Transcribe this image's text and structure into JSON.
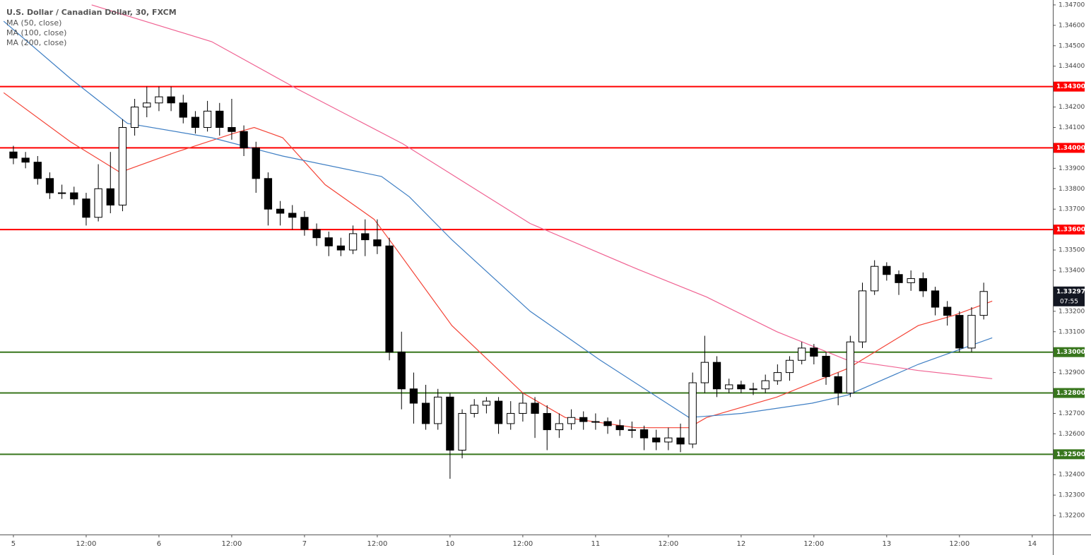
{
  "chart_data": {
    "type": "candlestick",
    "title": "U.S. Dollar / Canadian Dollar, 30, FXCM",
    "up_color": "#ffffff",
    "down_color": "#000000",
    "x": [
      0,
      2,
      4,
      6,
      8,
      10,
      12,
      14,
      16,
      18,
      20,
      22,
      24,
      26,
      28,
      30,
      32,
      34,
      36,
      38,
      40,
      42,
      44,
      46,
      48,
      50,
      52,
      54,
      56,
      58,
      60,
      62,
      64,
      66,
      68,
      70,
      72,
      74,
      76,
      78,
      80,
      82,
      84,
      86,
      88,
      90,
      92,
      94,
      96,
      98,
      100,
      102,
      104,
      106,
      108,
      110,
      112,
      114,
      116,
      118,
      120,
      122,
      124,
      126,
      128,
      130,
      132,
      134,
      136,
      138,
      140,
      142,
      144,
      146,
      148,
      150,
      152,
      154,
      156,
      158,
      160
    ],
    "open": [
      1.3398,
      1.3395,
      1.3393,
      1.3385,
      1.3378,
      1.3378,
      1.3375,
      1.3366,
      1.338,
      1.3372,
      1.341,
      1.342,
      1.3422,
      1.3425,
      1.3422,
      1.3415,
      1.341,
      1.3418,
      1.341,
      1.3408,
      1.34,
      1.3385,
      1.337,
      1.3368,
      1.3366,
      1.336,
      1.3356,
      1.3352,
      1.335,
      1.3358,
      1.3355,
      1.3352,
      1.33,
      1.3282,
      1.3275,
      1.3265,
      1.3278,
      1.3252,
      1.327,
      1.3274,
      1.3276,
      1.3265,
      1.327,
      1.3275,
      1.327,
      1.3262,
      1.3265,
      1.3268,
      1.3266,
      1.3266,
      1.3264,
      1.3262,
      1.3262,
      1.3258,
      1.3256,
      1.3258,
      1.3255,
      1.3285,
      1.3295,
      1.3282,
      1.3284,
      1.3282,
      1.3282,
      1.3286,
      1.329,
      1.3296,
      1.3302,
      1.3298,
      1.3288,
      1.328,
      1.3305,
      1.333,
      1.3342,
      1.3338,
      1.3334,
      1.3336,
      1.333,
      1.3322,
      1.3318,
      1.3302,
      1.3318
    ],
    "high": [
      1.3401,
      1.3398,
      1.3396,
      1.3388,
      1.3382,
      1.3381,
      1.3378,
      1.3392,
      1.3398,
      1.3414,
      1.3424,
      1.343,
      1.343,
      1.343,
      1.3426,
      1.3418,
      1.3423,
      1.3422,
      1.3424,
      1.3411,
      1.3403,
      1.3388,
      1.3374,
      1.3372,
      1.3369,
      1.3363,
      1.3359,
      1.3356,
      1.3362,
      1.3365,
      1.3365,
      1.3356,
      1.331,
      1.329,
      1.3284,
      1.3282,
      1.328,
      1.3272,
      1.3277,
      1.3278,
      1.3278,
      1.3276,
      1.328,
      1.3278,
      1.3274,
      1.327,
      1.3272,
      1.3271,
      1.327,
      1.3268,
      1.3267,
      1.3266,
      1.3264,
      1.3262,
      1.3263,
      1.3265,
      1.329,
      1.3308,
      1.3298,
      1.3287,
      1.3286,
      1.3285,
      1.3289,
      1.3294,
      1.3298,
      1.3305,
      1.3304,
      1.33,
      1.329,
      1.3308,
      1.3334,
      1.3345,
      1.3344,
      1.334,
      1.334,
      1.3339,
      1.3332,
      1.3325,
      1.332,
      1.3322,
      1.3334
    ],
    "low": [
      1.3392,
      1.339,
      1.3382,
      1.3375,
      1.3375,
      1.3372,
      1.3362,
      1.3364,
      1.3368,
      1.3369,
      1.3406,
      1.3415,
      1.3418,
      1.3418,
      1.3412,
      1.3407,
      1.3408,
      1.3406,
      1.3404,
      1.3396,
      1.3378,
      1.3362,
      1.3362,
      1.336,
      1.3357,
      1.3352,
      1.3347,
      1.3347,
      1.3348,
      1.3347,
      1.3348,
      1.3296,
      1.3272,
      1.3265,
      1.3262,
      1.3262,
      1.3238,
      1.3248,
      1.3268,
      1.327,
      1.326,
      1.3262,
      1.3266,
      1.3258,
      1.3252,
      1.3258,
      1.3262,
      1.3262,
      1.3262,
      1.326,
      1.3259,
      1.3258,
      1.3252,
      1.3252,
      1.3252,
      1.3251,
      1.3253,
      1.328,
      1.3278,
      1.328,
      1.328,
      1.3279,
      1.328,
      1.3284,
      1.3286,
      1.3294,
      1.3294,
      1.3284,
      1.3274,
      1.3278,
      1.3302,
      1.3328,
      1.3335,
      1.3328,
      1.333,
      1.3327,
      1.3318,
      1.3313,
      1.33,
      1.33,
      1.3316
    ],
    "close": [
      1.3395,
      1.3393,
      1.3385,
      1.3378,
      1.3378,
      1.3375,
      1.3366,
      1.338,
      1.3372,
      1.341,
      1.342,
      1.3422,
      1.3425,
      1.3422,
      1.3415,
      1.341,
      1.3418,
      1.341,
      1.3408,
      1.34,
      1.3385,
      1.337,
      1.3368,
      1.3366,
      1.336,
      1.3356,
      1.3352,
      1.335,
      1.3358,
      1.3355,
      1.3352,
      1.33,
      1.3282,
      1.3275,
      1.3265,
      1.3278,
      1.3252,
      1.327,
      1.3274,
      1.3276,
      1.3265,
      1.327,
      1.3275,
      1.327,
      1.3262,
      1.3265,
      1.3268,
      1.3266,
      1.3266,
      1.3264,
      1.3262,
      1.3262,
      1.3258,
      1.3256,
      1.3258,
      1.3255,
      1.3285,
      1.3295,
      1.3282,
      1.3284,
      1.3282,
      1.3282,
      1.3286,
      1.329,
      1.3296,
      1.3302,
      1.3298,
      1.3288,
      1.328,
      1.3305,
      1.333,
      1.3342,
      1.3338,
      1.3334,
      1.3336,
      1.333,
      1.3322,
      1.3318,
      1.3302,
      1.3318,
      1.33297
    ],
    "series": [
      {
        "name": "MA (50, close)",
        "color": "#f44336",
        "x": [
          -1.6,
          9.4,
          17.6,
          26.9,
          36.2,
          39.7,
          44.4,
          51.4,
          59.5,
          63.0,
          72.3,
          84.0,
          91.0,
          102.6,
          111.4,
          114.3,
          125.9,
          137.6,
          149.2,
          155.1,
          161.4
        ],
        "values": [
          1.3427,
          1.3403,
          1.3388,
          1.3398,
          1.3407,
          1.341,
          1.3405,
          1.3382,
          1.3365,
          1.3351,
          1.3313,
          1.328,
          1.3268,
          1.3263,
          1.3263,
          1.3268,
          1.3278,
          1.3292,
          1.3313,
          1.3318,
          1.3325
        ]
      },
      {
        "name": "MA (100, close)",
        "color": "#3f7fc4",
        "x": [
          -1.6,
          9.4,
          18.8,
          32.7,
          44.4,
          60.7,
          65.3,
          72.3,
          85.2,
          96.8,
          111.4,
          120.1,
          131.7,
          137.6,
          149.2,
          161.4
        ],
        "values": [
          1.3462,
          1.3434,
          1.3412,
          1.3405,
          1.3396,
          1.3386,
          1.3376,
          1.3355,
          1.332,
          1.3296,
          1.3268,
          1.327,
          1.3275,
          1.3279,
          1.3294,
          1.3307
        ]
      },
      {
        "name": "MA (200, close)",
        "color": "#f06292",
        "x": [
          12.9,
          32.7,
          46.7,
          64.2,
          85.2,
          102.6,
          114.3,
          125.9,
          137.6,
          149.2,
          161.4
        ],
        "values": [
          1.347,
          1.3452,
          1.3429,
          1.3402,
          1.3363,
          1.3341,
          1.3327,
          1.331,
          1.3296,
          1.3291,
          1.3287
        ]
      }
    ],
    "levels": [
      {
        "value": 1.343,
        "label": "1.34300",
        "color": "#ff0000"
      },
      {
        "value": 1.34,
        "label": "1.34000",
        "color": "#ff0000"
      },
      {
        "value": 1.336,
        "label": "1.33600",
        "color": "#ff0000"
      },
      {
        "value": 1.33,
        "label": "1.33000",
        "color": "#38761d"
      },
      {
        "value": 1.328,
        "label": "1.32800",
        "color": "#38761d"
      },
      {
        "value": 1.325,
        "label": "1.32500",
        "color": "#38761d"
      }
    ],
    "last_price": {
      "value": 1.33297,
      "label": "1.33297"
    },
    "countdown": "07:55",
    "xlim": [
      -2.21,
      171.4
    ],
    "ylim": [
      1.32107,
      1.34724
    ],
    "xticks": [
      {
        "value": 0,
        "label": "5"
      },
      {
        "value": 12,
        "label": "12:00"
      },
      {
        "value": 24,
        "label": "6"
      },
      {
        "value": 36,
        "label": "12:00"
      },
      {
        "value": 48,
        "label": "7"
      },
      {
        "value": 60,
        "label": "12:00"
      },
      {
        "value": 72,
        "label": "10"
      },
      {
        "value": 84,
        "label": "12:00"
      },
      {
        "value": 96,
        "label": "11"
      },
      {
        "value": 108,
        "label": "12:00"
      },
      {
        "value": 120,
        "label": "12"
      },
      {
        "value": 132,
        "label": "12:00"
      },
      {
        "value": 144,
        "label": "13"
      },
      {
        "value": 156,
        "label": "12:00"
      },
      {
        "value": 168,
        "label": "14"
      }
    ],
    "yticks": [
      {
        "value": 1.347,
        "label": "1.34700"
      },
      {
        "value": 1.346,
        "label": "1.34600"
      },
      {
        "value": 1.345,
        "label": "1.34500"
      },
      {
        "value": 1.344,
        "label": "1.34400"
      },
      {
        "value": 1.342,
        "label": "1.34200"
      },
      {
        "value": 1.341,
        "label": "1.34100"
      },
      {
        "value": 1.339,
        "label": "1.33900"
      },
      {
        "value": 1.338,
        "label": "1.33800"
      },
      {
        "value": 1.337,
        "label": "1.33700"
      },
      {
        "value": 1.335,
        "label": "1.33500"
      },
      {
        "value": 1.334,
        "label": "1.33400"
      },
      {
        "value": 1.332,
        "label": "1.33200"
      },
      {
        "value": 1.331,
        "label": "1.33100"
      },
      {
        "value": 1.329,
        "label": "1.32900"
      },
      {
        "value": 1.327,
        "label": "1.32700"
      },
      {
        "value": 1.326,
        "label": "1.32600"
      },
      {
        "value": 1.324,
        "label": "1.32400"
      },
      {
        "value": 1.323,
        "label": "1.32300"
      },
      {
        "value": 1.322,
        "label": "1.32200"
      }
    ]
  }
}
